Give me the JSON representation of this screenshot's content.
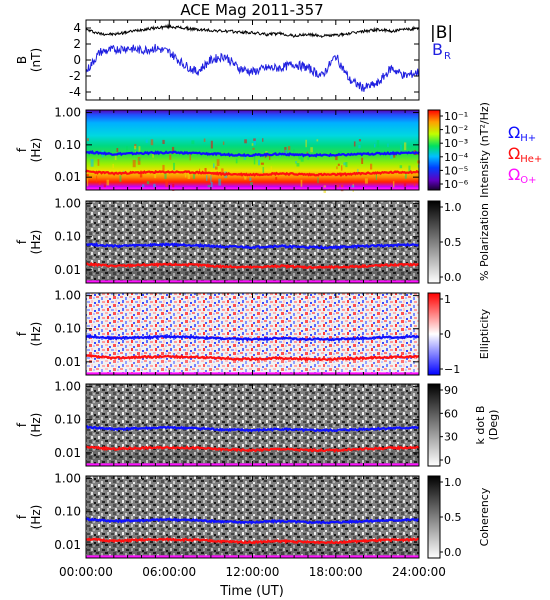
{
  "title": "ACE Mag 2011-357",
  "x_axis": {
    "label": "Time (UT)",
    "ticks": [
      "00:00:00",
      "06:00:00",
      "12:00:00",
      "18:00:00",
      "24:00:00"
    ],
    "hours": [
      0,
      6,
      12,
      18,
      24
    ],
    "range": [
      0,
      24
    ]
  },
  "legend_top": {
    "B_total": "|B|",
    "B_R_main": "B",
    "B_R_sub": "R"
  },
  "legend_gyro": [
    {
      "main": "Ω",
      "sub": "H+",
      "color": "#1010ff"
    },
    {
      "main": "Ω",
      "sub": "He+",
      "color": "#ff1010"
    },
    {
      "main": "Ω",
      "sub": "O+",
      "color": "#ff10ff"
    }
  ],
  "colors": {
    "B_total": "#000000",
    "B_R": "#2020e0",
    "H_plus": "#1010ff",
    "He_plus": "#ff1010",
    "O_plus": "#ff10ff"
  },
  "chart_data": [
    {
      "type": "line",
      "panel": "magnetic-field",
      "ylabel_main": "B",
      "ylabel_sub": "(nT)",
      "ylim": [
        -5,
        5
      ],
      "yticks": [
        -4,
        -2,
        0,
        2,
        4
      ],
      "x": [
        0,
        1,
        2,
        3,
        4,
        5,
        6,
        7,
        8,
        9,
        10,
        11,
        12,
        13,
        14,
        15,
        16,
        17,
        18,
        19,
        20,
        21,
        22,
        23,
        24
      ],
      "series": [
        {
          "name": "|B|",
          "values": [
            3.8,
            3.3,
            3.2,
            3.5,
            3.8,
            4.0,
            4.2,
            4.0,
            3.8,
            3.7,
            3.6,
            3.5,
            3.4,
            3.2,
            3.3,
            3.0,
            3.2,
            3.0,
            3.1,
            3.3,
            3.6,
            3.8,
            3.6,
            3.8,
            4.0
          ]
        },
        {
          "name": "B_R",
          "values": [
            -1.5,
            1.0,
            1.3,
            1.5,
            1.2,
            1.5,
            1.0,
            -0.5,
            -1.5,
            0.0,
            0.5,
            -1.0,
            -1.5,
            -1.0,
            -1.0,
            -0.5,
            -1.0,
            -2.0,
            0.5,
            -2.5,
            -3.5,
            -3.0,
            -1.0,
            -2.0,
            -1.5
          ]
        }
      ]
    },
    {
      "type": "heatmap",
      "panel": "intensity",
      "ylabel_main": "f",
      "ylabel_sub": "(Hz)",
      "yticks": [
        "1.00",
        "0.10",
        "0.01"
      ],
      "ytick_values": [
        1.0,
        0.1,
        0.01
      ],
      "ylim": [
        0.004,
        1.2
      ],
      "yscale": "log",
      "colorbar": {
        "label": "Intensity (nT²/Hz)",
        "ticks": [
          "10⁻¹",
          "10⁻²",
          "10⁻³",
          "10⁻⁴",
          "10⁻⁵",
          "10⁻⁶"
        ],
        "scale": "rainbow"
      }
    },
    {
      "type": "heatmap",
      "panel": "polarization",
      "ylabel_main": "f",
      "ylabel_sub": "(Hz)",
      "yticks": [
        "1.00",
        "0.10",
        "0.01"
      ],
      "ytick_values": [
        1.0,
        0.1,
        0.01
      ],
      "ylim": [
        0.004,
        1.2
      ],
      "yscale": "log",
      "colorbar": {
        "label": "% Polarization",
        "ticks": [
          "1.0",
          "0.5",
          "0.0"
        ],
        "scale": "gray"
      }
    },
    {
      "type": "heatmap",
      "panel": "ellipticity",
      "ylabel_main": "f",
      "ylabel_sub": "(Hz)",
      "yticks": [
        "1.00",
        "0.10",
        "0.01"
      ],
      "ytick_values": [
        1.0,
        0.1,
        0.01
      ],
      "ylim": [
        0.004,
        1.2
      ],
      "yscale": "log",
      "colorbar": {
        "label": "Ellipticity",
        "ticks": [
          "1",
          "0",
          "−1"
        ],
        "scale": "redblue"
      }
    },
    {
      "type": "heatmap",
      "panel": "k-dot-b",
      "ylabel_main": "f",
      "ylabel_sub": "(Hz)",
      "yticks": [
        "1.00",
        "0.10",
        "0.01"
      ],
      "ytick_values": [
        1.0,
        0.1,
        0.01
      ],
      "ylim": [
        0.004,
        1.2
      ],
      "yscale": "log",
      "colorbar": {
        "label": "k dot B",
        "label2": "(Deg)",
        "ticks": [
          "90",
          "60",
          "30",
          "0"
        ],
        "scale": "gray"
      }
    },
    {
      "type": "heatmap",
      "panel": "coherency",
      "ylabel_main": "f",
      "ylabel_sub": "(Hz)",
      "yticks": [
        "1.00",
        "0.10",
        "0.01"
      ],
      "ytick_values": [
        1.0,
        0.1,
        0.01
      ],
      "ylim": [
        0.004,
        1.2
      ],
      "yscale": "log",
      "colorbar": {
        "label": "Coherency",
        "ticks": [
          "1.0",
          "0.5",
          "0.0"
        ],
        "scale": "gray"
      }
    }
  ],
  "gyrofrequency_lines": {
    "x": [
      0,
      2,
      4,
      6,
      8,
      10,
      12,
      14,
      16,
      18,
      20,
      22,
      24
    ],
    "H_plus": [
      0.06,
      0.052,
      0.055,
      0.058,
      0.055,
      0.05,
      0.048,
      0.052,
      0.048,
      0.048,
      0.052,
      0.055,
      0.058
    ],
    "He_plus": [
      0.015,
      0.013,
      0.014,
      0.0145,
      0.014,
      0.0125,
      0.012,
      0.013,
      0.012,
      0.012,
      0.013,
      0.014,
      0.0145
    ],
    "O_plus": [
      0.0038,
      0.0033,
      0.0035,
      0.0036,
      0.0035,
      0.0031,
      0.003,
      0.0033,
      0.003,
      0.003,
      0.0033,
      0.0035,
      0.0036
    ]
  }
}
